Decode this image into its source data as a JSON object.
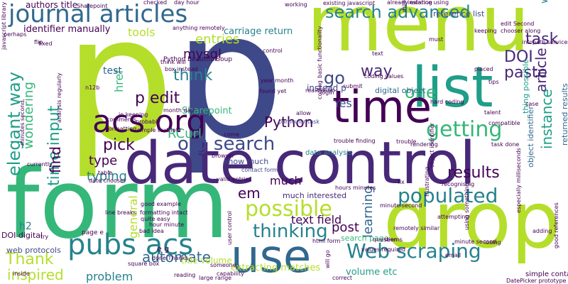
{
  "palette": [
    "#440154",
    "#482878",
    "#3e4989",
    "#31688e",
    "#26828e",
    "#1f9e89",
    "#35b779",
    "#6ece58",
    "#b5de2b",
    "#fde725"
  ],
  "words": [
    {
      "text": "p",
      "color": "#b5de2b"
    },
    {
      "text": "p",
      "color": "#3e4989"
    },
    {
      "text": "form",
      "color": "#35b779"
    },
    {
      "text": "menu",
      "color": "#b5de2b"
    },
    {
      "text": "date control",
      "color": "#482878"
    },
    {
      "text": "drop",
      "color": "#b5de2b"
    },
    {
      "text": "list",
      "color": "#1f9e89"
    },
    {
      "text": "time",
      "color": "#440154"
    },
    {
      "text": "use",
      "color": "#31688e"
    },
    {
      "text": "journal articles",
      "color": "#31688e"
    },
    {
      "text": "pubs acs",
      "color": "#26828e"
    },
    {
      "text": "acs org",
      "color": "#440154"
    },
    {
      "text": "search advanced",
      "color": "#26828e"
    },
    {
      "text": "org search",
      "color": "#3e4989"
    },
    {
      "text": "getting",
      "color": "#35b779"
    },
    {
      "text": "populated",
      "color": "#26828e"
    },
    {
      "text": "possible",
      "color": "#b5de2b"
    },
    {
      "text": "Web scraping",
      "color": "#26828e"
    },
    {
      "text": "thinking",
      "color": "#26828e"
    },
    {
      "text": "elegant way",
      "color": "#1f9e89"
    },
    {
      "text": "time input",
      "color": "#1f9e89"
    },
    {
      "text": "p edit",
      "color": "#440154"
    },
    {
      "text": "think",
      "color": "#26828e"
    },
    {
      "text": "Python",
      "color": "#440154"
    },
    {
      "text": "pick",
      "color": "#440154"
    },
    {
      "text": "Thank",
      "color": "#b5de2b"
    },
    {
      "text": "automate",
      "color": "#31688e"
    },
    {
      "text": "inspired",
      "color": "#b5de2b"
    },
    {
      "text": "one",
      "color": "#35b779"
    },
    {
      "text": "go",
      "color": "#3e4989"
    },
    {
      "text": "way",
      "color": "#482878"
    },
    {
      "text": "task",
      "color": "#482878"
    },
    {
      "text": "article",
      "color": "#482878"
    },
    {
      "text": "DOI",
      "color": "#482878"
    },
    {
      "text": "instance",
      "color": "#1f9e89"
    },
    {
      "text": "paste",
      "color": "#482878"
    },
    {
      "text": "results",
      "color": "#440154"
    },
    {
      "text": "em",
      "color": "#440154"
    },
    {
      "text": "much",
      "color": "#440154"
    },
    {
      "text": "entries",
      "color": "#b5de2b"
    },
    {
      "text": "mysql",
      "color": "#440154"
    },
    {
      "text": "type",
      "color": "#440154"
    },
    {
      "text": "typing",
      "color": "#26828e"
    },
    {
      "text": "find",
      "color": "#440154"
    },
    {
      "text": "wondering",
      "color": "#35b779"
    },
    {
      "text": "href",
      "color": "#35b779"
    },
    {
      "text": "RCurl",
      "color": "#35b779"
    },
    {
      "text": "post",
      "color": "#440154"
    },
    {
      "text": "learning",
      "color": "#31688e"
    },
    {
      "text": "text field",
      "color": "#440154"
    },
    {
      "text": "Yes",
      "color": "#3e4989"
    },
    {
      "text": "general",
      "color": "#b5de2b"
    },
    {
      "text": "tools",
      "color": "#b5de2b"
    },
    {
      "text": "test",
      "color": "#31688e"
    },
    {
      "text": "problem",
      "color": "#26828e"
    },
    {
      "text": "h2",
      "color": "#26828e"
    },
    {
      "text": "Sharepoint",
      "color": "#35b779"
    },
    {
      "text": "carriage return",
      "color": "#26828e"
    },
    {
      "text": "identifier manually",
      "color": "#440154"
    },
    {
      "text": "authors title",
      "color": "#440154"
    },
    {
      "text": "instead p",
      "color": "#3e4989"
    },
    {
      "text": "digital object",
      "color": "#31688e"
    },
    {
      "text": "extracting matches",
      "color": "#b5de2b"
    },
    {
      "text": "title volume",
      "color": "#b5de2b"
    },
    {
      "text": "know much",
      "color": "#3e4989"
    },
    {
      "text": "search page",
      "color": "#35b779"
    },
    {
      "text": "much interested",
      "color": "#482878"
    },
    {
      "text": "web protocols",
      "color": "#3e4989"
    },
    {
      "text": "DOI digital",
      "color": "#440154"
    },
    {
      "text": "e g",
      "color": "#440154"
    },
    {
      "text": "web",
      "color": "#26828e"
    },
    {
      "text": "Python BeautifulSoup",
      "color": "#440154"
    },
    {
      "text": "data analysis",
      "color": "#26828e"
    },
    {
      "text": "valid entries",
      "color": "#440154"
    },
    {
      "text": "contact form",
      "color": "#3e4989"
    },
    {
      "text": "page e",
      "color": "#440154"
    },
    {
      "text": "bad idea",
      "color": "#440154"
    },
    {
      "text": "quite easy",
      "color": "#440154"
    },
    {
      "text": "done Thanks",
      "color": "#440154"
    },
    {
      "text": "large range",
      "color": "#440154"
    },
    {
      "text": "volume etc",
      "color": "#1f9e89"
    },
    {
      "text": "simple textfield",
      "color": "#440154"
    },
    {
      "text": "reference list",
      "color": "#3e4989"
    },
    {
      "text": "trouble finding",
      "color": "#440154"
    },
    {
      "text": "particular task",
      "color": "#3e4989"
    },
    {
      "text": "date chooser",
      "color": "#440154"
    },
    {
      "text": "hours minutes",
      "color": "#440154"
    },
    {
      "text": "minute second",
      "color": "#440154"
    },
    {
      "text": "returned results",
      "color": "#31688e"
    },
    {
      "text": "object identifier",
      "color": "#31688e"
    },
    {
      "text": "simple contact",
      "color": "#440154"
    },
    {
      "text": "good example",
      "color": "#440154"
    },
    {
      "text": "formatting intact",
      "color": "#440154"
    },
    {
      "text": "hour minute",
      "color": "#440154"
    },
    {
      "text": "found yet",
      "color": "#440154"
    },
    {
      "text": "coding values",
      "color": "#440154"
    },
    {
      "text": "year month",
      "color": "#440154"
    },
    {
      "text": "thing possible",
      "color": "#1f9e89"
    },
    {
      "text": "edit Second",
      "color": "#440154"
    },
    {
      "text": "chooser along",
      "color": "#440154"
    },
    {
      "text": "existing javascript",
      "color": "#440154"
    },
    {
      "text": "day hour",
      "color": "#440154"
    },
    {
      "text": "working",
      "color": "#440154"
    },
    {
      "text": "already existing",
      "color": "#440154"
    },
    {
      "text": "checked",
      "color": "#440154"
    },
    {
      "text": "millisecond",
      "color": "#440154"
    },
    {
      "text": "keeping",
      "color": "#440154"
    },
    {
      "text": "perhaps",
      "color": "#440154"
    },
    {
      "text": "anything remotely",
      "color": "#440154"
    },
    {
      "text": "think will",
      "color": "#440154"
    },
    {
      "text": "box instead",
      "color": "#440154"
    },
    {
      "text": "instance using",
      "color": "#440154"
    },
    {
      "text": "basic functionality",
      "color": "#440154"
    },
    {
      "text": "formatting",
      "color": "#440154"
    },
    {
      "text": "comments",
      "color": "#440154"
    },
    {
      "text": "month day",
      "color": "#440154"
    },
    {
      "text": "probably",
      "color": "#440154"
    },
    {
      "text": "analysis regularly",
      "color": "#440154"
    },
    {
      "text": "ie keeping",
      "color": "#440154"
    },
    {
      "text": "currently",
      "color": "#440154"
    },
    {
      "text": "minutes second",
      "color": "#440154"
    },
    {
      "text": "trouble",
      "color": "#440154"
    },
    {
      "text": "rendering",
      "color": "#440154"
    },
    {
      "text": "task done",
      "color": "#440154"
    },
    {
      "text": "allow",
      "color": "#440154"
    },
    {
      "text": "coding",
      "color": "#440154"
    },
    {
      "text": "realization",
      "color": "#440154"
    },
    {
      "text": "login",
      "color": "#440154"
    },
    {
      "text": "submit",
      "color": "#440154"
    },
    {
      "text": "tips",
      "color": "#440154"
    },
    {
      "text": "fix",
      "color": "#440154"
    },
    {
      "text": "recognising",
      "color": "#440154"
    },
    {
      "text": "frustrating",
      "color": "#440154"
    },
    {
      "text": "attempting",
      "color": "#440154"
    },
    {
      "text": "minute second",
      "color": "#440154"
    },
    {
      "text": "remotely similar",
      "color": "#440154"
    },
    {
      "text": "values required",
      "color": "#440154"
    },
    {
      "text": "question",
      "color": "#440154"
    },
    {
      "text": "email",
      "color": "#440154"
    },
    {
      "text": "using something",
      "color": "#440154"
    },
    {
      "text": "losing",
      "color": "#440154"
    },
    {
      "text": "adding",
      "color": "#440154"
    },
    {
      "text": "good references",
      "color": "#440154"
    },
    {
      "text": "DatePicker prototype",
      "color": "#440154"
    },
    {
      "text": "square box",
      "color": "#440154"
    },
    {
      "text": "reading",
      "color": "#440154"
    },
    {
      "text": "someone",
      "color": "#440154"
    },
    {
      "text": "capability",
      "color": "#440154"
    },
    {
      "text": "user control",
      "color": "#440154"
    },
    {
      "text": "html form",
      "color": "#440154"
    },
    {
      "text": "especially milliseconds",
      "color": "#440154"
    },
    {
      "text": "object identifier",
      "color": "#440154"
    },
    {
      "text": "seems",
      "color": "#440154"
    },
    {
      "text": "will go",
      "color": "#440154"
    },
    {
      "text": "correct",
      "color": "#440154"
    },
    {
      "text": "inside",
      "color": "#440154"
    },
    {
      "text": "try",
      "color": "#440154"
    },
    {
      "text": "table",
      "color": "#440154"
    },
    {
      "text": "line breaks",
      "color": "#440154"
    },
    {
      "text": "javascript library",
      "color": "#440154"
    },
    {
      "text": "fixed",
      "color": "#440154"
    },
    {
      "text": "control",
      "color": "#440154"
    },
    {
      "text": "text",
      "color": "#440154"
    },
    {
      "text": "must",
      "color": "#440154"
    },
    {
      "text": "compatible",
      "color": "#440154"
    },
    {
      "text": "talent",
      "color": "#440154"
    },
    {
      "text": "case",
      "color": "#440154"
    },
    {
      "text": "placed",
      "color": "#440154"
    },
    {
      "text": "hard coding",
      "color": "#440154"
    },
    {
      "text": "infopath services",
      "color": "#440154"
    },
    {
      "text": "flip",
      "color": "#440154"
    },
    {
      "text": "n12b",
      "color": "#440154"
    },
    {
      "text": "browser",
      "color": "#440154"
    },
    {
      "text": "come",
      "color": "#440154"
    },
    {
      "text": "Sharepoint",
      "color": "#440154"
    }
  ]
}
